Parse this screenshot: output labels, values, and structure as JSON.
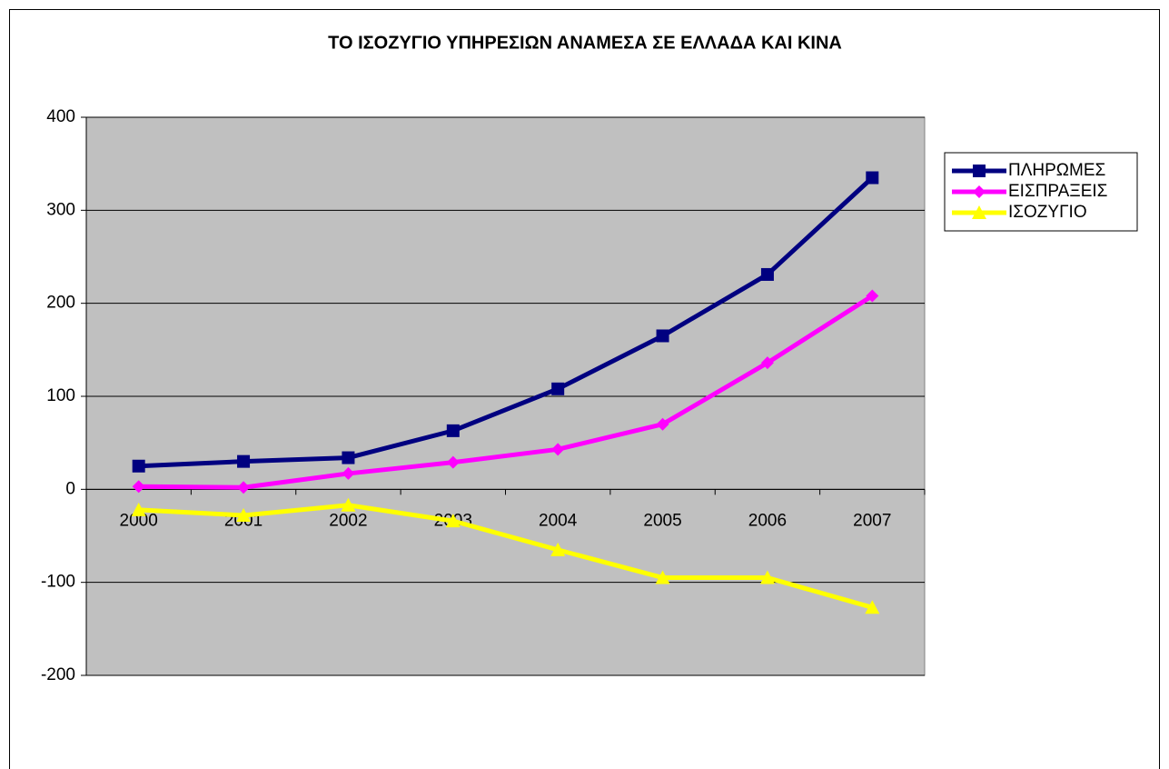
{
  "chart_data": {
    "type": "line",
    "title": "ΤΟ ΙΣΟΖΥΓΙΟ ΥΠΗΡΕΣΙΩΝ ΑΝΑΜΕΣΑ ΣΕ ΕΛΛΑΔΑ ΚΑΙ ΚΙΝΑ",
    "categories": [
      "2000",
      "2001",
      "2002",
      "2003",
      "2004",
      "2005",
      "2006",
      "2007"
    ],
    "series": [
      {
        "name": "ΠΛΗΡΩΜΕΣ",
        "color": "#000080",
        "marker": "square",
        "values": [
          25,
          30,
          34,
          63,
          108,
          165,
          231,
          335
        ]
      },
      {
        "name": "ΕΙΣΠΡΑΞΕΙΣ",
        "color": "#ff00ff",
        "marker": "diamond",
        "values": [
          3,
          2,
          17,
          29,
          43,
          70,
          136,
          208
        ]
      },
      {
        "name": "ΙΣΟΖΥΓΙΟ",
        "color": "#ffff00",
        "marker": "triangle",
        "values": [
          -22,
          -28,
          -17,
          -34,
          -65,
          -95,
          -95,
          -127
        ]
      }
    ],
    "ylim": [
      -200,
      400
    ],
    "yticks": [
      -200,
      -100,
      0,
      100,
      200,
      300,
      400
    ],
    "grid": true,
    "legend": "right"
  }
}
